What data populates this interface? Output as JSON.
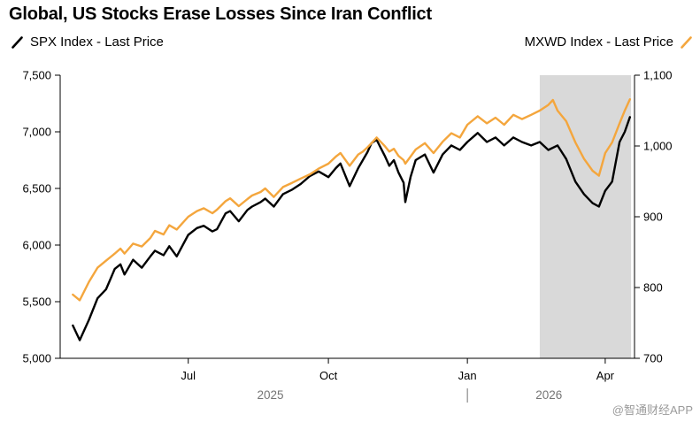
{
  "title": "Global, US Stocks Erase Losses Since Iran Conflict",
  "legend": {
    "spx_label": "SPX Index - Last Price",
    "mxwd_label": "MXWD Index - Last Price"
  },
  "watermark": "@智通财经APP",
  "colors": {
    "spx": "#000000",
    "mxwd": "#f4a63d",
    "axis": "#000000",
    "axis_text": "#000000",
    "year_text": "#757575",
    "watermark_text": "#9b9b9b"
  },
  "chart_data": {
    "type": "line",
    "title": "Global, US Stocks Erase Losses Since Iran Conflict",
    "left_axis": {
      "label": "SPX Index - Last Price",
      "min": 5000,
      "max": 7500,
      "ticks": [
        5000,
        5500,
        6000,
        6500,
        7000,
        7500
      ],
      "tick_labels": [
        "5,000",
        "5,500",
        "6,000",
        "6,500",
        "7,000",
        "7,500"
      ]
    },
    "right_axis": {
      "label": "MXWD Index - Last Price",
      "min": 700,
      "max": 1100,
      "ticks": [
        700,
        800,
        900,
        1000,
        1100
      ],
      "tick_labels": [
        "700",
        "800",
        "900",
        "1,000",
        "1,100"
      ]
    },
    "x_axis": {
      "range": [
        0,
        1
      ],
      "ticks": [
        {
          "pos": 0.223,
          "label": "Jul"
        },
        {
          "pos": 0.467,
          "label": "Oct"
        },
        {
          "pos": 0.709,
          "label": "Jan"
        },
        {
          "pos": 0.949,
          "label": "Apr"
        }
      ],
      "years": [
        {
          "pos": 0.366,
          "label": "2025"
        },
        {
          "pos": 0.851,
          "label": "2026"
        }
      ],
      "year_divider_pos": 0.709
    },
    "shaded_region": {
      "x_start": 0.835,
      "x_end": 0.994,
      "color": "#d9d9d9"
    },
    "grid": false,
    "legend_position": "top",
    "series": [
      {
        "id": "spx",
        "name": "SPX Index - Last Price",
        "axis": "left",
        "color": "#000000",
        "points": [
          [
            0.022,
            5290
          ],
          [
            0.034,
            5160
          ],
          [
            0.05,
            5340
          ],
          [
            0.065,
            5530
          ],
          [
            0.08,
            5610
          ],
          [
            0.095,
            5790
          ],
          [
            0.105,
            5830
          ],
          [
            0.112,
            5740
          ],
          [
            0.127,
            5870
          ],
          [
            0.142,
            5800
          ],
          [
            0.157,
            5900
          ],
          [
            0.165,
            5950
          ],
          [
            0.18,
            5910
          ],
          [
            0.19,
            5990
          ],
          [
            0.203,
            5900
          ],
          [
            0.223,
            6090
          ],
          [
            0.238,
            6150
          ],
          [
            0.25,
            6170
          ],
          [
            0.265,
            6120
          ],
          [
            0.273,
            6140
          ],
          [
            0.288,
            6280
          ],
          [
            0.296,
            6300
          ],
          [
            0.311,
            6210
          ],
          [
            0.326,
            6310
          ],
          [
            0.334,
            6340
          ],
          [
            0.349,
            6380
          ],
          [
            0.357,
            6410
          ],
          [
            0.372,
            6340
          ],
          [
            0.388,
            6450
          ],
          [
            0.404,
            6490
          ],
          [
            0.419,
            6540
          ],
          [
            0.435,
            6610
          ],
          [
            0.45,
            6650
          ],
          [
            0.467,
            6600
          ],
          [
            0.48,
            6680
          ],
          [
            0.488,
            6720
          ],
          [
            0.504,
            6520
          ],
          [
            0.519,
            6680
          ],
          [
            0.527,
            6750
          ],
          [
            0.535,
            6820
          ],
          [
            0.542,
            6900
          ],
          [
            0.551,
            6930
          ],
          [
            0.558,
            6860
          ],
          [
            0.565,
            6790
          ],
          [
            0.573,
            6700
          ],
          [
            0.581,
            6750
          ],
          [
            0.589,
            6640
          ],
          [
            0.598,
            6550
          ],
          [
            0.601,
            6380
          ],
          [
            0.61,
            6600
          ],
          [
            0.619,
            6750
          ],
          [
            0.635,
            6800
          ],
          [
            0.65,
            6640
          ],
          [
            0.666,
            6800
          ],
          [
            0.681,
            6880
          ],
          [
            0.696,
            6840
          ],
          [
            0.709,
            6910
          ],
          [
            0.727,
            6990
          ],
          [
            0.743,
            6910
          ],
          [
            0.758,
            6950
          ],
          [
            0.773,
            6880
          ],
          [
            0.789,
            6950
          ],
          [
            0.804,
            6910
          ],
          [
            0.82,
            6880
          ],
          [
            0.835,
            6910
          ],
          [
            0.85,
            6840
          ],
          [
            0.866,
            6880
          ],
          [
            0.881,
            6760
          ],
          [
            0.897,
            6560
          ],
          [
            0.912,
            6450
          ],
          [
            0.927,
            6370
          ],
          [
            0.938,
            6340
          ],
          [
            0.949,
            6480
          ],
          [
            0.961,
            6560
          ],
          [
            0.974,
            6910
          ],
          [
            0.983,
            7000
          ],
          [
            0.992,
            7130
          ]
        ]
      },
      {
        "id": "mxwd",
        "name": "MXWD Index - Last Price",
        "axis": "right",
        "color": "#f4a63d",
        "points": [
          [
            0.022,
            790
          ],
          [
            0.034,
            782
          ],
          [
            0.05,
            808
          ],
          [
            0.065,
            828
          ],
          [
            0.08,
            838
          ],
          [
            0.095,
            848
          ],
          [
            0.105,
            855
          ],
          [
            0.112,
            848
          ],
          [
            0.127,
            862
          ],
          [
            0.142,
            858
          ],
          [
            0.157,
            870
          ],
          [
            0.165,
            880
          ],
          [
            0.18,
            875
          ],
          [
            0.19,
            888
          ],
          [
            0.203,
            882
          ],
          [
            0.223,
            900
          ],
          [
            0.238,
            908
          ],
          [
            0.25,
            912
          ],
          [
            0.265,
            905
          ],
          [
            0.273,
            910
          ],
          [
            0.288,
            922
          ],
          [
            0.296,
            926
          ],
          [
            0.311,
            915
          ],
          [
            0.326,
            925
          ],
          [
            0.334,
            930
          ],
          [
            0.349,
            935
          ],
          [
            0.357,
            940
          ],
          [
            0.372,
            928
          ],
          [
            0.388,
            942
          ],
          [
            0.404,
            948
          ],
          [
            0.419,
            954
          ],
          [
            0.435,
            960
          ],
          [
            0.45,
            968
          ],
          [
            0.467,
            975
          ],
          [
            0.48,
            985
          ],
          [
            0.488,
            990
          ],
          [
            0.504,
            972
          ],
          [
            0.519,
            988
          ],
          [
            0.527,
            992
          ],
          [
            0.535,
            998
          ],
          [
            0.542,
            1004
          ],
          [
            0.551,
            1012
          ],
          [
            0.558,
            1006
          ],
          [
            0.565,
            1000
          ],
          [
            0.573,
            992
          ],
          [
            0.581,
            996
          ],
          [
            0.589,
            986
          ],
          [
            0.598,
            980
          ],
          [
            0.601,
            975
          ],
          [
            0.61,
            985
          ],
          [
            0.619,
            995
          ],
          [
            0.635,
            1004
          ],
          [
            0.65,
            990
          ],
          [
            0.666,
            1006
          ],
          [
            0.681,
            1018
          ],
          [
            0.696,
            1012
          ],
          [
            0.709,
            1030
          ],
          [
            0.727,
            1042
          ],
          [
            0.743,
            1032
          ],
          [
            0.758,
            1040
          ],
          [
            0.773,
            1030
          ],
          [
            0.789,
            1044
          ],
          [
            0.804,
            1038
          ],
          [
            0.82,
            1044
          ],
          [
            0.835,
            1050
          ],
          [
            0.85,
            1058
          ],
          [
            0.858,
            1065
          ],
          [
            0.866,
            1050
          ],
          [
            0.881,
            1035
          ],
          [
            0.897,
            1005
          ],
          [
            0.912,
            982
          ],
          [
            0.927,
            965
          ],
          [
            0.938,
            958
          ],
          [
            0.949,
            990
          ],
          [
            0.961,
            1005
          ],
          [
            0.974,
            1032
          ],
          [
            0.983,
            1050
          ],
          [
            0.992,
            1066
          ]
        ]
      }
    ]
  }
}
